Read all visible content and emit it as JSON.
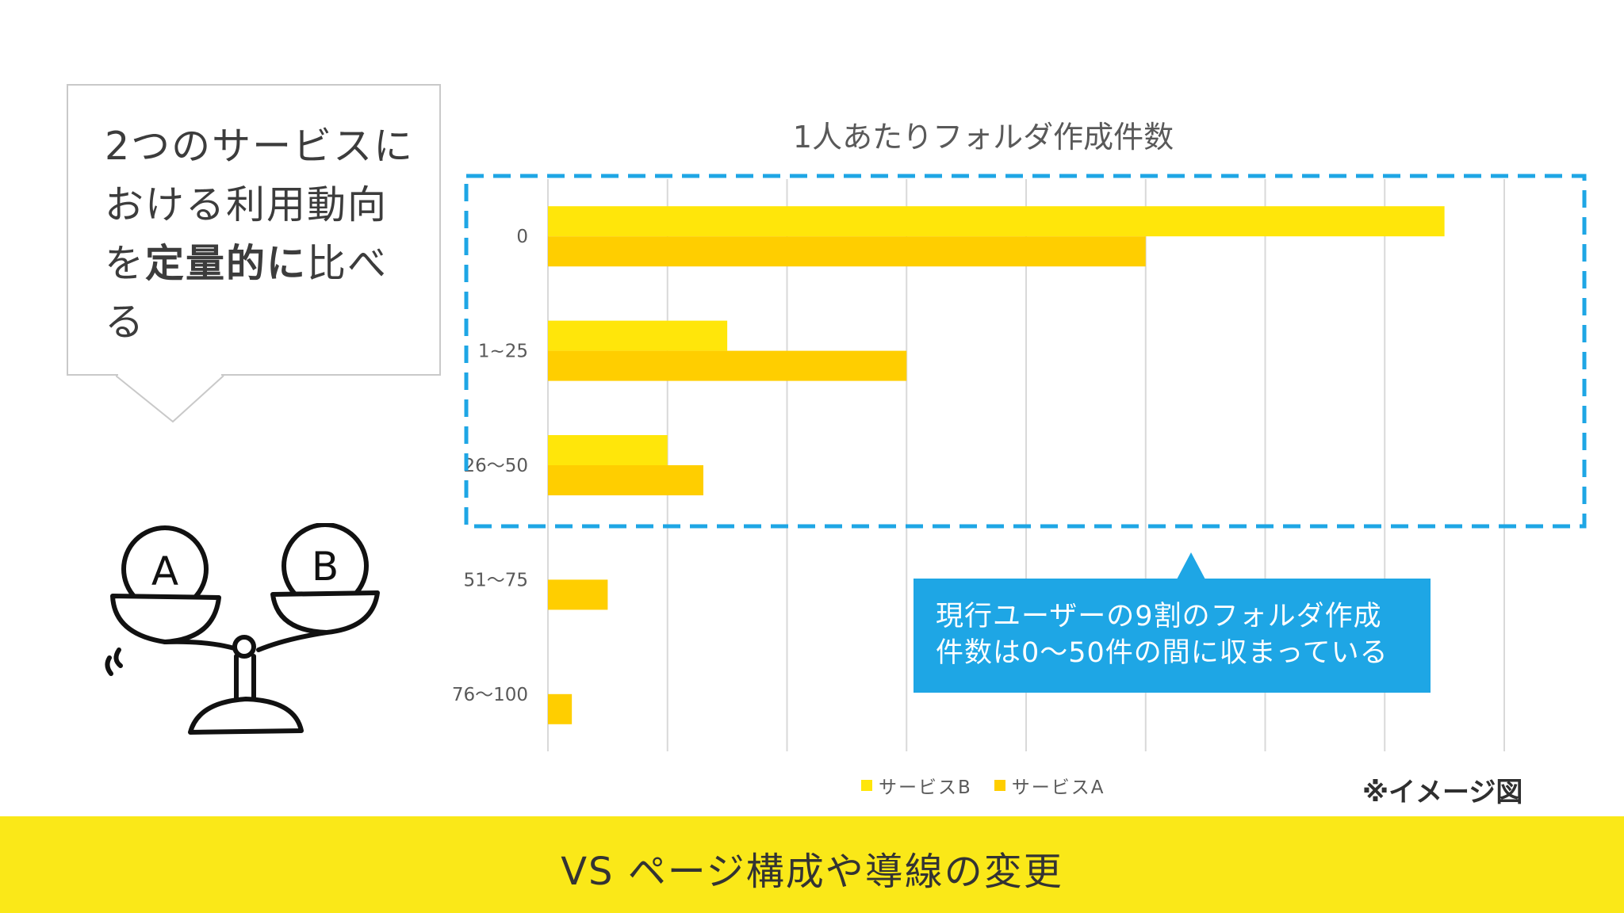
{
  "bubble": {
    "parts": [
      {
        "text": "2つのサービスにおける利用動向を",
        "bold": false
      },
      {
        "text": "定量的に",
        "bold": true
      },
      {
        "text": "比べる",
        "bold": false
      }
    ]
  },
  "scale_labels": {
    "left": "A",
    "right": "B"
  },
  "chart_data": {
    "type": "bar",
    "orientation": "horizontal",
    "title": "1人あたりフォルダ作成件数",
    "categories": [
      "0",
      "1~25",
      "26〜50",
      "51〜75",
      "76〜100"
    ],
    "series": [
      {
        "name": "サービスB",
        "color": "#ffe60a",
        "values": [
          75,
          15,
          10,
          0,
          0
        ]
      },
      {
        "name": "サービスA",
        "color": "#ffce00",
        "values": [
          50,
          30,
          13,
          5,
          2
        ]
      }
    ],
    "xlim": [
      0,
      80
    ],
    "x_gridlines": [
      0,
      10,
      20,
      30,
      40,
      50,
      60,
      70,
      80
    ],
    "legend_position": "bottom",
    "grid": true
  },
  "highlight": {
    "color": "#1ea6e5"
  },
  "callout": {
    "line1": "現行ユーザーの9割のフォルダ作成",
    "line2": "件数は0〜50件の間に収まっている"
  },
  "image_note": "※イメージ図",
  "footer": {
    "text": "VS ページ構成や導線の変更",
    "color": "#fae818"
  }
}
